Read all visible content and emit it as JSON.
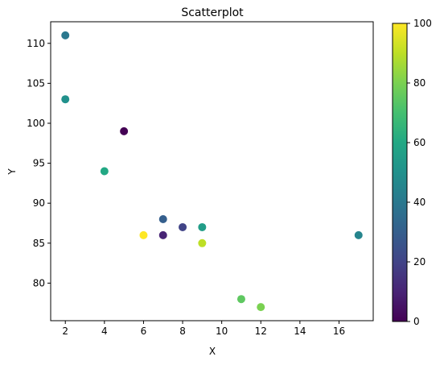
{
  "chart_data": {
    "type": "scatter",
    "title": "Scatterplot",
    "xlabel": "X",
    "ylabel": "Y",
    "xlim": [
      1.25,
      17.75
    ],
    "ylim": [
      75.3,
      112.7
    ],
    "xticks": [
      2,
      4,
      6,
      8,
      10,
      12,
      14,
      16
    ],
    "yticks": [
      80,
      85,
      90,
      95,
      100,
      105,
      110
    ],
    "colormap": "viridis",
    "colorbar": {
      "range": [
        0,
        100
      ],
      "ticks": [
        0,
        20,
        40,
        60,
        80,
        100
      ]
    },
    "grid": false,
    "points": [
      {
        "x": 2,
        "y": 111,
        "c": 40
      },
      {
        "x": 2,
        "y": 103,
        "c": 50
      },
      {
        "x": 5,
        "y": 99,
        "c": 0
      },
      {
        "x": 4,
        "y": 94,
        "c": 60
      },
      {
        "x": 7,
        "y": 88,
        "c": 30
      },
      {
        "x": 8,
        "y": 87,
        "c": 20
      },
      {
        "x": 9,
        "y": 87,
        "c": 55
      },
      {
        "x": 6,
        "y": 86,
        "c": 100
      },
      {
        "x": 7,
        "y": 86,
        "c": 10
      },
      {
        "x": 17,
        "y": 86,
        "c": 45
      },
      {
        "x": 9,
        "y": 85,
        "c": 90
      },
      {
        "x": 11,
        "y": 78,
        "c": 75
      },
      {
        "x": 12,
        "y": 77,
        "c": 80
      }
    ]
  }
}
